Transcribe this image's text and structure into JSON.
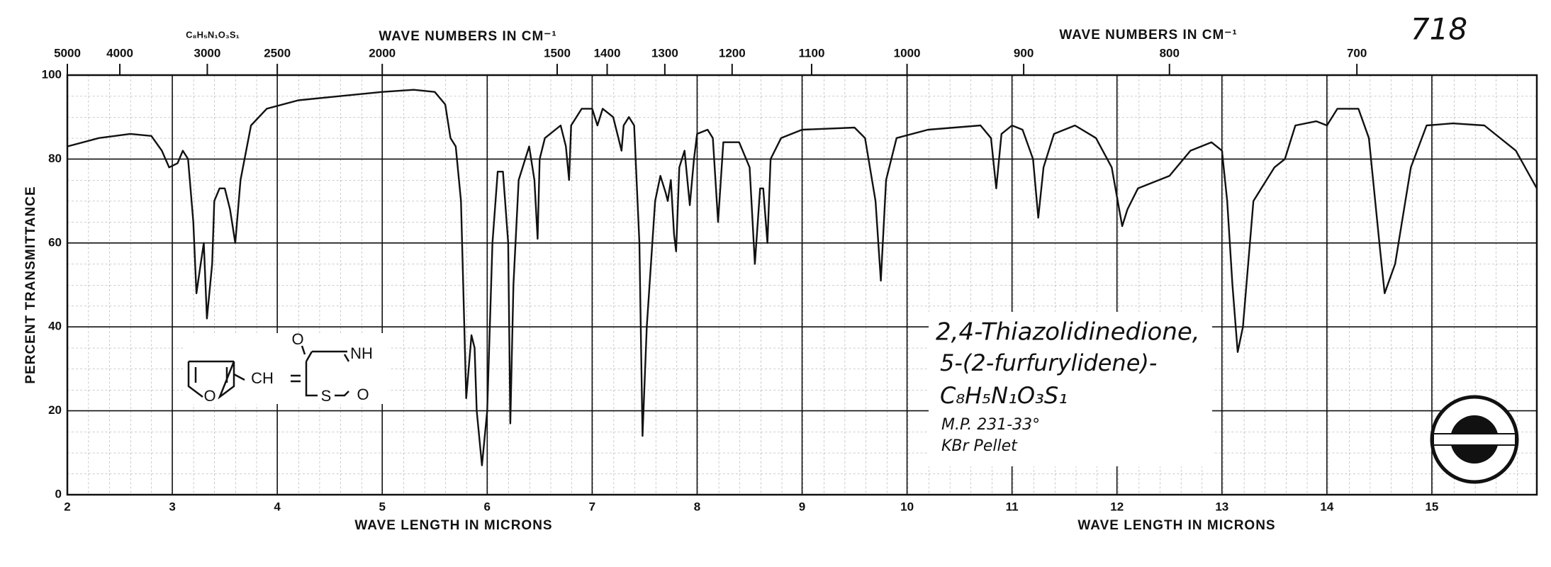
{
  "chart_data": {
    "type": "line",
    "x_title": [
      "WAVE LENGTH IN MICRONS",
      "WAVE LENGTH IN MICRONS"
    ],
    "y_title": "PERCENT TRANSMITTANCE",
    "top_title": [
      "WAVE NUMBERS IN CM⁻¹",
      "WAVE NUMBERS IN CM⁻¹"
    ],
    "formula": "C₈H₅N₁O₃S₁",
    "sheet_number": "718",
    "annotations": [
      "2,4-Thiazolidinedione,",
      "5-(2-furfurylidene)-",
      "C₈H₅N₁O₃S₁",
      "M.P. 231-33°",
      "KBr Pellet"
    ],
    "structure_labels": [
      "O",
      "CH",
      "O",
      "NH",
      "S",
      "O"
    ],
    "color": "#111111",
    "grid": true,
    "xlim": [
      2,
      16
    ],
    "ylim": [
      0,
      100
    ],
    "xticks": [
      2,
      3,
      4,
      5,
      6,
      7,
      8,
      9,
      10,
      11,
      12,
      13,
      14,
      15
    ],
    "yticks": [
      0,
      20,
      40,
      60,
      80,
      100
    ],
    "top_ticks": [
      5000,
      4000,
      3000,
      2500,
      2000,
      1500,
      1400,
      1300,
      1200,
      1100,
      1000,
      900,
      800,
      700
    ],
    "x": [
      2.0,
      2.3,
      2.6,
      2.8,
      2.9,
      2.97,
      3.05,
      3.1,
      3.15,
      3.2,
      3.23,
      3.27,
      3.3,
      3.33,
      3.38,
      3.4,
      3.45,
      3.5,
      3.55,
      3.6,
      3.65,
      3.75,
      3.9,
      4.2,
      4.6,
      5.0,
      5.3,
      5.5,
      5.6,
      5.65,
      5.7,
      5.75,
      5.8,
      5.85,
      5.88,
      5.9,
      5.95,
      6.0,
      6.05,
      6.1,
      6.15,
      6.2,
      6.22,
      6.25,
      6.3,
      6.4,
      6.45,
      6.48,
      6.5,
      6.55,
      6.7,
      6.75,
      6.78,
      6.8,
      6.9,
      7.0,
      7.05,
      7.1,
      7.2,
      7.25,
      7.28,
      7.3,
      7.35,
      7.4,
      7.45,
      7.48,
      7.52,
      7.6,
      7.65,
      7.7,
      7.72,
      7.75,
      7.78,
      7.8,
      7.83,
      7.88,
      7.93,
      7.97,
      8.0,
      8.1,
      8.15,
      8.2,
      8.25,
      8.4,
      8.5,
      8.55,
      8.6,
      8.63,
      8.67,
      8.7,
      8.8,
      9.0,
      9.5,
      9.6,
      9.7,
      9.75,
      9.8,
      9.9,
      10.2,
      10.7,
      10.8,
      10.85,
      10.9,
      11.0,
      11.1,
      11.2,
      11.25,
      11.3,
      11.4,
      11.6,
      11.8,
      11.95,
      12.05,
      12.1,
      12.2,
      12.5,
      12.7,
      12.9,
      13.0,
      13.05,
      13.1,
      13.15,
      13.2,
      13.3,
      13.5,
      13.6,
      13.7,
      13.9,
      14.0,
      14.1,
      14.3,
      14.4,
      14.5,
      14.55,
      14.65,
      14.8,
      14.95,
      15.2,
      15.5,
      15.8,
      16.0
    ],
    "values": [
      83,
      85,
      86,
      85.5,
      82,
      78,
      79,
      82,
      80,
      65,
      48,
      55,
      60,
      42,
      55,
      70,
      73,
      73,
      68,
      60,
      75,
      88,
      92,
      94,
      95,
      96,
      96.5,
      96,
      93,
      85,
      83,
      70,
      23,
      38,
      35,
      20,
      7,
      20,
      60,
      77,
      77,
      60,
      17,
      50,
      75,
      83,
      75,
      61,
      80,
      85,
      88,
      83,
      75,
      88,
      92,
      92,
      88,
      92,
      90,
      85,
      82,
      88,
      90,
      88,
      60,
      14,
      40,
      70,
      76,
      72,
      70,
      75,
      62,
      58,
      78,
      82,
      69,
      80,
      86,
      87,
      85,
      65,
      84,
      84,
      78,
      55,
      73,
      73,
      60,
      80,
      85,
      87,
      87.5,
      85,
      70,
      51,
      75,
      85,
      87,
      88,
      85,
      73,
      86,
      88,
      87,
      80,
      66,
      78,
      86,
      88,
      85,
      78,
      64,
      68,
      73,
      76,
      82,
      84,
      82,
      70,
      50,
      34,
      40,
      70,
      78,
      80,
      88,
      89,
      88,
      92,
      92,
      85,
      60,
      48,
      55,
      78,
      88,
      88.5,
      88,
      82,
      73
    ]
  }
}
